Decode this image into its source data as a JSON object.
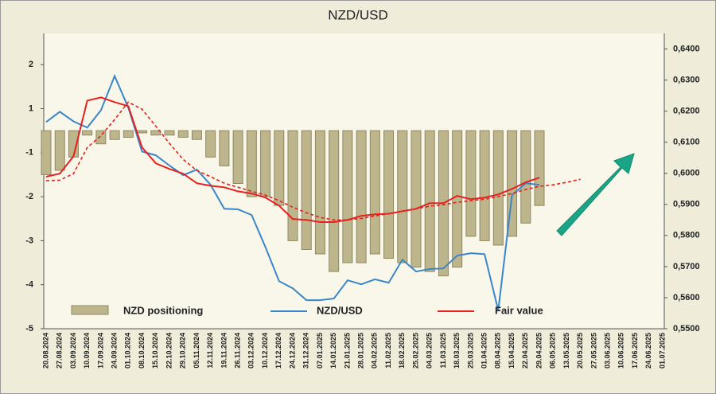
{
  "chart_data": {
    "type": "bar-line",
    "title": "NZD/USD",
    "categories": [
      "20.08.2024",
      "27.08.2024",
      "03.09.2024",
      "10.09.2024",
      "17.09.2024",
      "24.09.2024",
      "01.10.2024",
      "08.10.2024",
      "15.10.2024",
      "22.10.2024",
      "29.10.2024",
      "05.11.2024",
      "12.11.2024",
      "19.11.2024",
      "26.11.2024",
      "03.12.2024",
      "10.12.2024",
      "17.12.2024",
      "24.12.2024",
      "31.12.2024",
      "07.01.2025",
      "14.01.2025",
      "21.01.2025",
      "28.01.2025",
      "04.02.2025",
      "11.02.2025",
      "18.02.2025",
      "25.02.2025",
      "04.03.2025",
      "11.03.2025",
      "18.03.2025",
      "25.03.2025",
      "01.04.2025",
      "08.04.2025",
      "15.04.2025",
      "22.04.2025",
      "29.04.2025",
      "06.05.2025",
      "13.05.2025",
      "20.05.2025",
      "27.05.2025",
      "03.06.2025",
      "10.06.2025",
      "17.06.2025",
      "24.06.2025",
      "01.07.2025"
    ],
    "series": [
      {
        "name": "NZD positioning",
        "kind": "bar",
        "color": "#bdb58c",
        "values": [
          -1.5,
          -1.4,
          -1.1,
          -0.2,
          -0.6,
          -0.4,
          -0.3,
          -0.1,
          -0.2,
          -0.2,
          -0.3,
          -0.4,
          -1.1,
          -1.3,
          -1.7,
          -2.0,
          -2.0,
          -2.2,
          -3.0,
          -3.2,
          -3.3,
          -3.7,
          -3.5,
          -3.5,
          -3.3,
          -3.4,
          -3.5,
          -3.6,
          -3.7,
          -3.8,
          -3.6,
          -2.9,
          -3.0,
          -3.1,
          -2.9,
          -2.6,
          -2.2,
          null,
          null,
          null,
          null,
          null,
          null,
          null,
          null,
          null
        ]
      },
      {
        "name": "NZD/USD",
        "kind": "line",
        "axis": "y2",
        "color": "#3a86c8",
        "values": [
          0.6165,
          0.6198,
          0.6167,
          0.6147,
          0.6203,
          0.6313,
          0.6211,
          0.607,
          0.6058,
          0.6025,
          0.5994,
          0.6012,
          0.5963,
          0.5886,
          0.5884,
          0.5866,
          0.5763,
          0.5653,
          0.563,
          0.5592,
          0.5592,
          0.5597,
          0.5656,
          0.5643,
          0.5659,
          0.5648,
          0.5722,
          0.5684,
          0.5692,
          0.5694,
          0.5735,
          0.5743,
          0.574,
          0.5559,
          0.593,
          0.5968,
          0.5963,
          null,
          null,
          null,
          null,
          null,
          null,
          null,
          null,
          null
        ]
      },
      {
        "name": "Fair value",
        "kind": "line",
        "axis": "y2",
        "color": "#e8201e",
        "values": [
          0.5989,
          0.5999,
          0.6055,
          0.6234,
          0.6244,
          0.6229,
          0.6216,
          0.6083,
          0.6032,
          0.6014,
          0.5999,
          0.5968,
          0.596,
          0.5955,
          0.5942,
          0.5935,
          0.5922,
          0.5896,
          0.5853,
          0.585,
          0.5843,
          0.5843,
          0.585,
          0.5863,
          0.5868,
          0.587,
          0.5878,
          0.5886,
          0.5904,
          0.5904,
          0.5927,
          0.5917,
          0.5922,
          0.5932,
          0.595,
          0.5971,
          0.5986,
          null,
          null,
          null,
          null,
          null,
          null,
          null,
          null,
          null
        ]
      },
      {
        "kind": "dashed",
        "axis": "y2",
        "color": "#e8201e",
        "values": [
          0.5976,
          0.5978,
          0.5999,
          0.6083,
          0.6121,
          0.6173,
          0.6229,
          0.6206,
          0.6152,
          0.6096,
          0.6045,
          0.6009,
          0.5989,
          0.5968,
          0.5955,
          0.5942,
          0.593,
          0.5912,
          0.5891,
          0.5873,
          0.5858,
          0.585,
          0.585,
          0.5855,
          0.5863,
          0.587,
          0.5878,
          0.5886,
          0.5894,
          0.5899,
          0.5907,
          0.5912,
          0.5917,
          0.5925,
          0.5935,
          0.5948,
          0.5958,
          0.5963,
          0.5971,
          0.5981,
          null,
          null,
          null,
          null,
          null,
          null
        ]
      }
    ],
    "yticks": [
      2,
      1,
      -1,
      -2,
      -3,
      -4,
      -5
    ],
    "y2lim": [
      0.55,
      0.645
    ],
    "y2ticks": [
      {
        "value": 0.55,
        "label": "0,5500"
      },
      {
        "value": 0.56,
        "label": "0,5600"
      },
      {
        "value": 0.57,
        "label": "0,5700"
      },
      {
        "value": 0.58,
        "label": "0,5800"
      },
      {
        "value": 0.59,
        "label": "0,5900"
      },
      {
        "value": 0.6,
        "label": "0,6000"
      },
      {
        "value": 0.61,
        "label": "0,6100"
      },
      {
        "value": 0.62,
        "label": "0,6200"
      },
      {
        "value": 0.63,
        "label": "0,6300"
      },
      {
        "value": 0.64,
        "label": "0,6400"
      }
    ],
    "grid": false
  }
}
